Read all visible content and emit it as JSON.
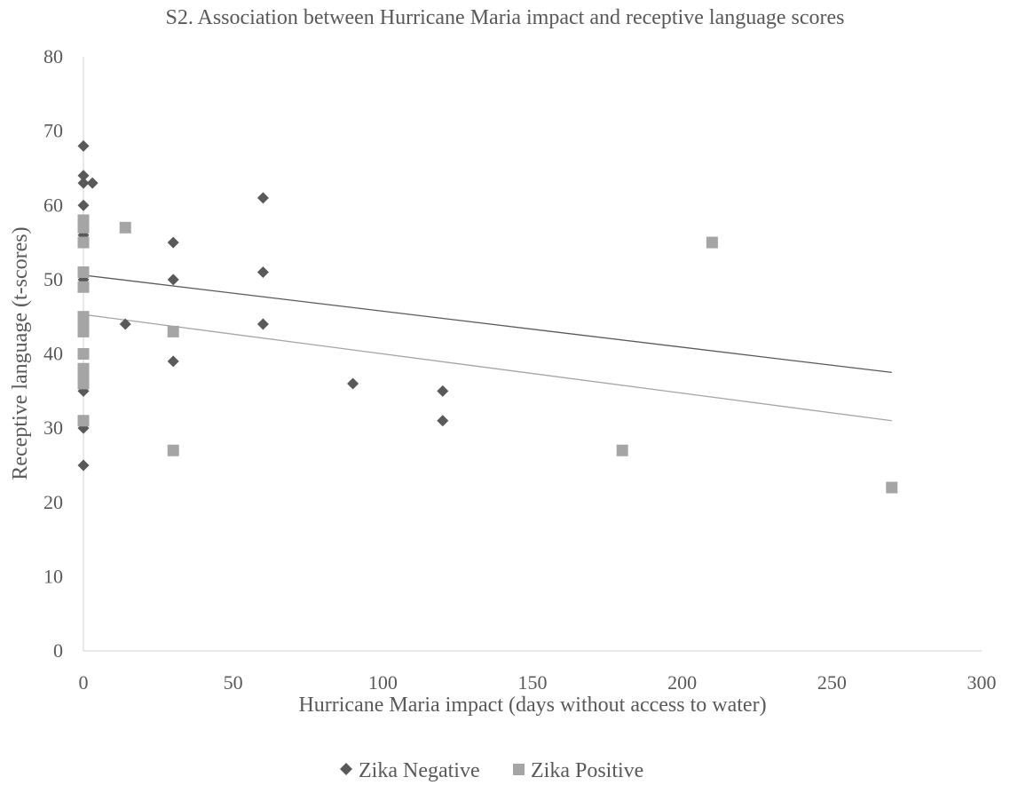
{
  "chart_data": {
    "type": "scatter",
    "title": "S2. Association between Hurricane Maria impact and receptive language scores",
    "xlabel": "Hurricane Maria impact (days without access to water)",
    "ylabel": "Receptive language (t-scores)",
    "xlim": [
      0,
      300
    ],
    "ylim": [
      0,
      80
    ],
    "xticks": [
      0,
      50,
      100,
      150,
      200,
      250,
      300
    ],
    "yticks": [
      0,
      10,
      20,
      30,
      40,
      50,
      60,
      70,
      80
    ],
    "xtick_labels": [
      "0",
      "50",
      "100",
      "150",
      "200",
      "250",
      "300"
    ],
    "ytick_labels": [
      "0",
      "10",
      "20",
      "30",
      "40",
      "50",
      "60",
      "70",
      "80"
    ],
    "grid": false,
    "legend_position": "bottom",
    "series": [
      {
        "name": "Zika Negative",
        "marker": "diamond",
        "color": "#595959",
        "points": [
          [
            0,
            68
          ],
          [
            0,
            64
          ],
          [
            0,
            63
          ],
          [
            3,
            63
          ],
          [
            0,
            60
          ],
          [
            0,
            58
          ],
          [
            0,
            56
          ],
          [
            0,
            55
          ],
          [
            0,
            51
          ],
          [
            0,
            50
          ],
          [
            0,
            44
          ],
          [
            0,
            40
          ],
          [
            0,
            35
          ],
          [
            0,
            30
          ],
          [
            0,
            25
          ],
          [
            14,
            44
          ],
          [
            30,
            55
          ],
          [
            30,
            50
          ],
          [
            30,
            39
          ],
          [
            60,
            61
          ],
          [
            60,
            51
          ],
          [
            60,
            44
          ],
          [
            90,
            36
          ],
          [
            120,
            35
          ],
          [
            120,
            31
          ],
          [
            210,
            55
          ]
        ],
        "trendline": [
          [
            0,
            50.6
          ],
          [
            270,
            37.5
          ]
        ],
        "trendline_color": "#595959"
      },
      {
        "name": "Zika Positive",
        "marker": "square",
        "color": "#a5a5a5",
        "points": [
          [
            0,
            58
          ],
          [
            0,
            57
          ],
          [
            0,
            55
          ],
          [
            0,
            51
          ],
          [
            0,
            49
          ],
          [
            0,
            45
          ],
          [
            0,
            44
          ],
          [
            0,
            43
          ],
          [
            0,
            40
          ],
          [
            0,
            38
          ],
          [
            0,
            37
          ],
          [
            0,
            36
          ],
          [
            0,
            31
          ],
          [
            14,
            57
          ],
          [
            30,
            43
          ],
          [
            30,
            27
          ],
          [
            180,
            27
          ],
          [
            210,
            55
          ],
          [
            270,
            22
          ]
        ],
        "trendline": [
          [
            0,
            45.3
          ],
          [
            270,
            31
          ]
        ],
        "trendline_color": "#a5a5a5"
      }
    ]
  }
}
